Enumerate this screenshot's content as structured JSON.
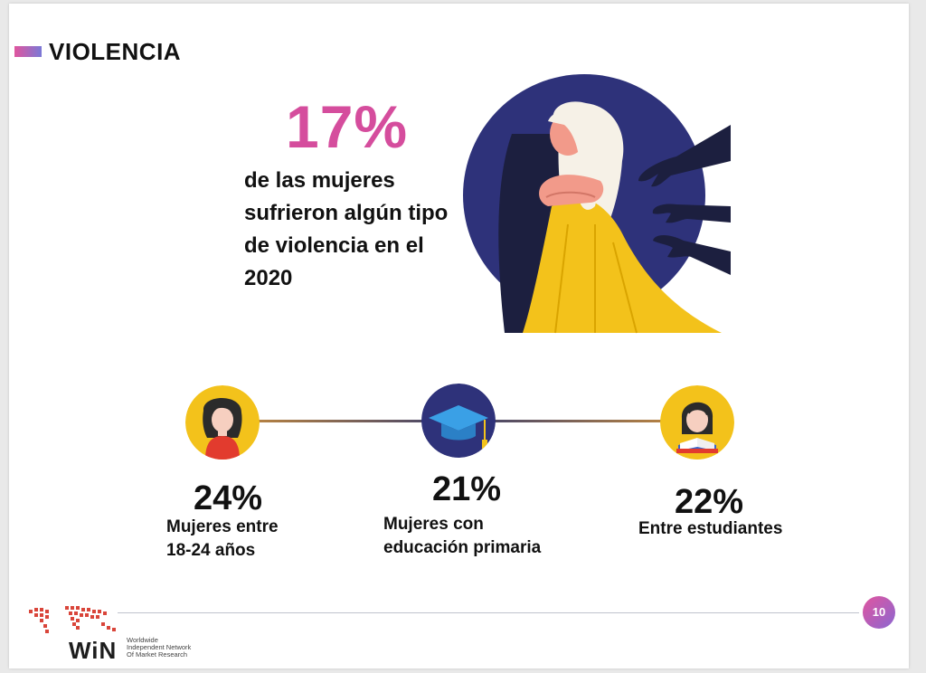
{
  "header": {
    "title": "VIOLENCIA"
  },
  "hero": {
    "stat": "17%",
    "description": "de las mujeres sufrieron algún tipo de violencia en el 2020"
  },
  "stats": [
    {
      "value": "24%",
      "label_line1": "Mujeres entre",
      "label_line2": "18-24 años",
      "icon": "young-woman-icon"
    },
    {
      "value": "21%",
      "label_line1": "Mujeres con",
      "label_line2": "educación primaria",
      "icon": "graduation-cap-icon"
    },
    {
      "value": "22%",
      "label_line1": "Entre estudiantes",
      "label_line2": "",
      "icon": "student-reading-icon"
    }
  ],
  "footer": {
    "page_number": "10",
    "logo_text": "WiN",
    "logo_sub1": "Worldwide",
    "logo_sub2": "Independent Network",
    "logo_sub3": "Of Market Research"
  },
  "colors": {
    "accent_pink": "#d54d9d",
    "navy": "#2e327a",
    "gold": "#f3c21b",
    "title_bar": "#e0559e"
  }
}
